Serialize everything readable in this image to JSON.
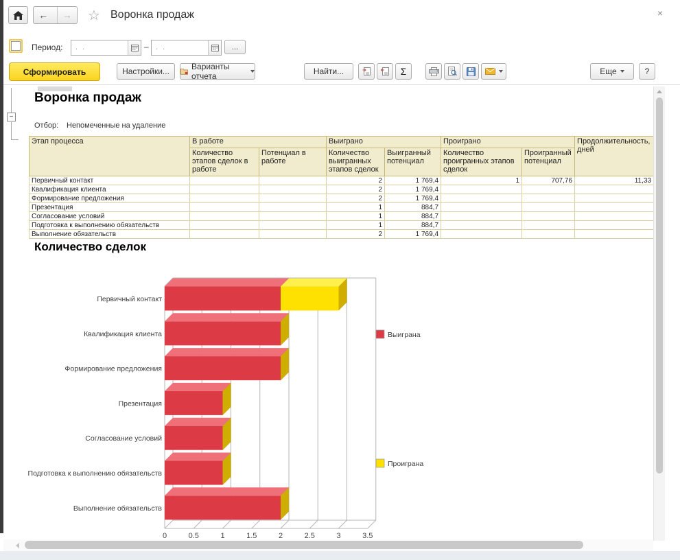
{
  "window": {
    "title": "Воронка продаж",
    "close_icon": "×"
  },
  "nav": {
    "back": "←",
    "forward": "→",
    "star": "☆"
  },
  "period": {
    "label": "Период:",
    "from_placeholder": ".  .",
    "to_placeholder": ".  .",
    "separator": "–",
    "ellipsis": "..."
  },
  "toolbar": {
    "generate": "Сформировать",
    "settings": "Настройки...",
    "variants": "Варианты отчета",
    "find": "Найти...",
    "sigma": "Σ",
    "more": "Еще",
    "help": "?"
  },
  "report": {
    "title": "Воронка продаж",
    "filter_label": "Отбор:",
    "filter_value": "Непомеченные на удаление"
  },
  "table": {
    "group_headers": {
      "stage": "Этап процесса",
      "in_work": "В работе",
      "won": "Выиграно",
      "lost": "Проиграно",
      "duration": "Продолжительность, дней"
    },
    "sub_headers": {
      "in_work_count": "Количество этапов сделок в работе",
      "in_work_potential": "Потенциал в работе",
      "won_count": "Количество выигранных этапов сделок",
      "won_potential": "Выигранный потенциал",
      "lost_count": "Количество проигранных этапов сделок",
      "lost_potential": "Проигранный потенциал"
    },
    "rows": [
      {
        "stage": "Первичный контакт",
        "in_work_count": "",
        "in_work_potential": "",
        "won_count": "2",
        "won_potential": "1 769,4",
        "lost_count": "1",
        "lost_potential": "707,76",
        "duration": "11,33"
      },
      {
        "stage": "Квалификация клиента",
        "in_work_count": "",
        "in_work_potential": "",
        "won_count": "2",
        "won_potential": "1 769,4",
        "lost_count": "",
        "lost_potential": "",
        "duration": ""
      },
      {
        "stage": "Формирование предложения",
        "in_work_count": "",
        "in_work_potential": "",
        "won_count": "2",
        "won_potential": "1 769,4",
        "lost_count": "",
        "lost_potential": "",
        "duration": ""
      },
      {
        "stage": "Презентация",
        "in_work_count": "",
        "in_work_potential": "",
        "won_count": "1",
        "won_potential": "884,7",
        "lost_count": "",
        "lost_potential": "",
        "duration": ""
      },
      {
        "stage": "Согласование условий",
        "in_work_count": "",
        "in_work_potential": "",
        "won_count": "1",
        "won_potential": "884,7",
        "lost_count": "",
        "lost_potential": "",
        "duration": ""
      },
      {
        "stage": "Подготовка к выполнению обязательств",
        "in_work_count": "",
        "in_work_potential": "",
        "won_count": "1",
        "won_potential": "884,7",
        "lost_count": "",
        "lost_potential": "",
        "duration": ""
      },
      {
        "stage": "Выполнение обязательств",
        "in_work_count": "",
        "in_work_potential": "",
        "won_count": "2",
        "won_potential": "1 769,4",
        "lost_count": "",
        "lost_potential": "",
        "duration": ""
      }
    ]
  },
  "chart_data": {
    "type": "bar",
    "orientation": "horizontal",
    "style": "3d-stacked",
    "title": "Количество сделок",
    "categories": [
      "Первичный контакт",
      "Квалификация клиента",
      "Формирование предложения",
      "Презентация",
      "Согласование условий",
      "Подготовка к выполнению обязательств",
      "Выполнение обязательств"
    ],
    "series": [
      {
        "name": "Выиграна",
        "color_front": "#dc3b45",
        "color_top": "#ef7078",
        "color_side": "#b5303a",
        "values": [
          2,
          2,
          2,
          1,
          1,
          1,
          2
        ]
      },
      {
        "name": "Проиграна",
        "color_front": "#ffe100",
        "color_top": "#fff04d",
        "color_side": "#cfae00",
        "values": [
          1,
          0,
          0,
          0,
          0,
          0,
          0
        ]
      }
    ],
    "xlim": [
      0,
      3.5
    ],
    "xticks": [
      "0",
      "0.5",
      "1",
      "1.5",
      "2",
      "2.5",
      "3",
      "3.5"
    ],
    "grid": true,
    "legend_position": "right"
  },
  "colors": {
    "accent_yellow": "#fbd41f",
    "table_header_bg": "#f1ecce",
    "table_header_border": "#c6b878",
    "table_row_border": "#dccf9e",
    "grid_line": "#b5b5b5"
  }
}
